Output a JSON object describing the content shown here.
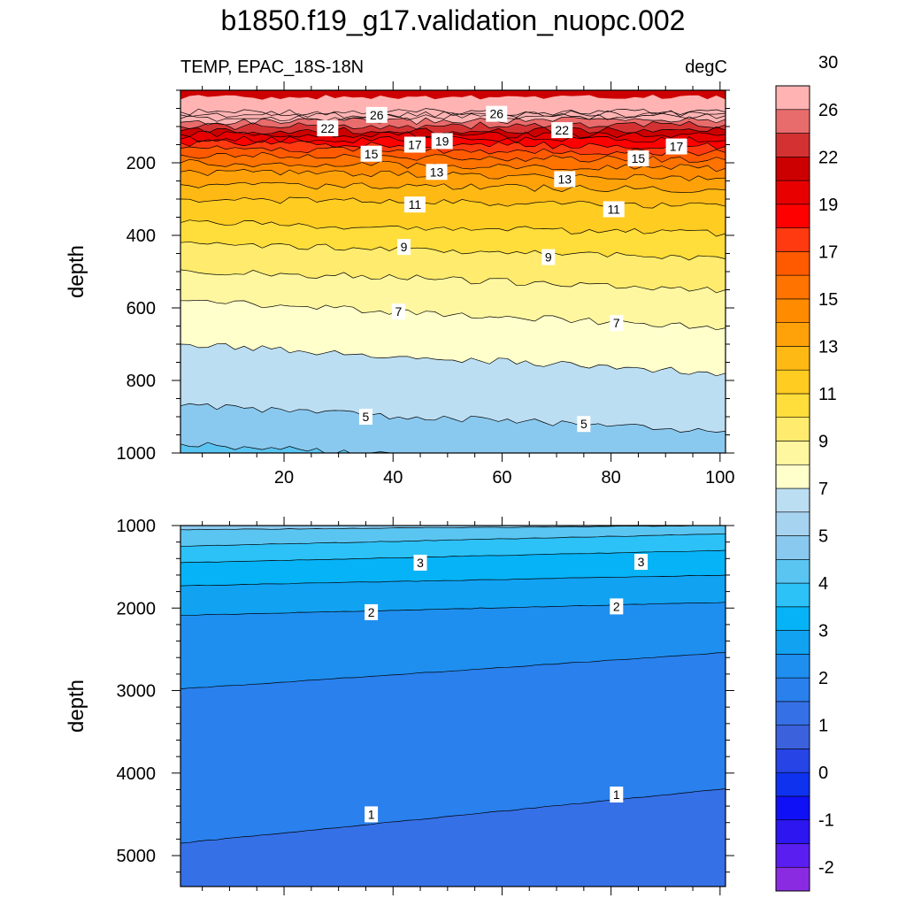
{
  "title": "b1850.f19_g17.validation_nuopc.002",
  "left_string": "TEMP, EPAC_18S-18N",
  "right_string": "degC",
  "colors": {
    "palette": [
      "#8a2be2",
      "#5a1ef0",
      "#2d16ef",
      "#1010f7",
      "#0e32ee",
      "#2744e6",
      "#3b62dc",
      "#3670e6",
      "#2a80ec",
      "#1e8fef",
      "#12a2f2",
      "#06b3f6",
      "#2cc2f8",
      "#5bc5f2",
      "#8ac9ef",
      "#a6d4f0",
      "#bcdef2",
      "#ffffcc",
      "#fff7a0",
      "#ffeb6e",
      "#ffdd3a",
      "#ffcc22",
      "#ffb915",
      "#ffa20a",
      "#ff8c00",
      "#ff7300",
      "#ff5a00",
      "#ff3a10",
      "#ff0000",
      "#e80000",
      "#cc0000",
      "#d43232",
      "#e86c6c",
      "#ffb3b3"
    ]
  },
  "chart_data": [
    {
      "type": "contour",
      "panel": "upper",
      "title": "",
      "xlabel": "",
      "ylabel": "depth",
      "xlim": [
        1,
        101
      ],
      "ylim": [
        1000,
        0
      ],
      "x_ticks": [
        20,
        40,
        60,
        80,
        100
      ],
      "x_tick_labels": [
        "20",
        "40",
        "60",
        "80",
        "100"
      ],
      "y_ticks": [
        200,
        400,
        600,
        800,
        1000
      ],
      "y_tick_labels": [
        "200",
        "400",
        "600",
        "800",
        "1000"
      ],
      "y_data_top": 0,
      "y_data_bottom": 1000,
      "contours": [
        {
          "level": 28.0,
          "depth_left": 60,
          "depth_right": 60
        },
        {
          "level": 27.0,
          "depth_left": 68,
          "depth_right": 64
        },
        {
          "level": 26.0,
          "depth_left": 78,
          "depth_right": 70
        },
        {
          "level": 24.0,
          "depth_left": 88,
          "depth_right": 80
        },
        {
          "level": 22.0,
          "depth_left": 100,
          "depth_right": 95
        },
        {
          "level": 20.0,
          "depth_left": 112,
          "depth_right": 110
        },
        {
          "level": 19.0,
          "depth_left": 122,
          "depth_right": 122
        },
        {
          "level": 18.0,
          "depth_left": 135,
          "depth_right": 138
        },
        {
          "level": 17.0,
          "depth_left": 145,
          "depth_right": 155
        },
        {
          "level": 16.0,
          "depth_left": 160,
          "depth_right": 172
        },
        {
          "level": 15.0,
          "depth_left": 178,
          "depth_right": 192
        },
        {
          "level": 14.0,
          "depth_left": 200,
          "depth_right": 215
        },
        {
          "level": 13.0,
          "depth_left": 225,
          "depth_right": 242
        },
        {
          "level": 12.0,
          "depth_left": 260,
          "depth_right": 275
        },
        {
          "level": 11.0,
          "depth_left": 300,
          "depth_right": 320
        },
        {
          "level": 10.0,
          "depth_left": 365,
          "depth_right": 395
        },
        {
          "level": 9.0,
          "depth_left": 420,
          "depth_right": 465
        },
        {
          "level": 8.0,
          "depth_left": 495,
          "depth_right": 550
        },
        {
          "level": 7.0,
          "depth_left": 580,
          "depth_right": 655
        },
        {
          "level": 6.0,
          "depth_left": 700,
          "depth_right": 780
        },
        {
          "level": 5.0,
          "depth_left": 870,
          "depth_right": 940
        },
        {
          "level": 4.0,
          "depth_left": 975,
          "depth_right": 1050
        }
      ],
      "contour_labels": [
        {
          "text": "26",
          "x": 37,
          "depth": 68
        },
        {
          "text": "26",
          "x": 59,
          "depth": 65
        },
        {
          "text": "22",
          "x": 28,
          "depth": 105
        },
        {
          "text": "22",
          "x": 71,
          "depth": 110
        },
        {
          "text": "17",
          "x": 44,
          "depth": 150
        },
        {
          "text": "19",
          "x": 49,
          "depth": 140
        },
        {
          "text": "17",
          "x": 92,
          "depth": 155
        },
        {
          "text": "15",
          "x": 36,
          "depth": 175
        },
        {
          "text": "15",
          "x": 85,
          "depth": 188
        },
        {
          "text": "13",
          "x": 48,
          "depth": 225
        },
        {
          "text": "13",
          "x": 71.5,
          "depth": 245
        },
        {
          "text": "11",
          "x": 44,
          "depth": 315
        },
        {
          "text": "11",
          "x": 80.5,
          "depth": 328
        },
        {
          "text": "9",
          "x": 42,
          "depth": 432
        },
        {
          "text": "9",
          "x": 68.5,
          "depth": 460
        },
        {
          "text": "7",
          "x": 41,
          "depth": 610
        },
        {
          "text": "7",
          "x": 81,
          "depth": 642
        },
        {
          "text": "5",
          "x": 35,
          "depth": 900
        },
        {
          "text": "5",
          "x": 75,
          "depth": 920
        }
      ]
    },
    {
      "type": "contour",
      "panel": "lower",
      "title": "",
      "xlabel": "",
      "ylabel": "depth",
      "xlim": [
        1,
        101
      ],
      "ylim": [
        5375,
        1000
      ],
      "x_ticks": [
        20,
        40,
        60,
        80,
        100
      ],
      "x_tick_labels": [
        "",
        "",
        "",
        "",
        ""
      ],
      "y_ticks": [
        1000,
        2000,
        3000,
        4000,
        5000
      ],
      "y_tick_labels": [
        "1000",
        "2000",
        "3000",
        "4000",
        "5000"
      ],
      "y_data_top": 1000,
      "y_data_bottom": 5375,
      "contours": [
        {
          "level": 4.0,
          "depth_left": 1050,
          "depth_right": 1000
        },
        {
          "level": 3.5,
          "depth_left": 1250,
          "depth_right": 1100
        },
        {
          "level": 3.0,
          "depth_left": 1450,
          "depth_right": 1300
        },
        {
          "level": 2.5,
          "depth_left": 1730,
          "depth_right": 1600
        },
        {
          "level": 2.0,
          "depth_left": 2090,
          "depth_right": 1930
        },
        {
          "level": 1.5,
          "depth_left": 2980,
          "depth_right": 2540
        },
        {
          "level": 1.0,
          "depth_left": 4850,
          "depth_right": 4190
        }
      ],
      "contour_labels": [
        {
          "text": "3",
          "x": 45,
          "depth": 1450
        },
        {
          "text": "3",
          "x": 85.5,
          "depth": 1440
        },
        {
          "text": "2",
          "x": 36,
          "depth": 2050
        },
        {
          "text": "2",
          "x": 81,
          "depth": 1980
        },
        {
          "text": "1",
          "x": 36,
          "depth": 4500
        },
        {
          "text": "1",
          "x": 81,
          "depth": 4260
        }
      ]
    }
  ],
  "colorbar": {
    "levels": [
      -2.5,
      -2,
      -1.5,
      -1,
      -0.5,
      0,
      0.5,
      1,
      1.5,
      2,
      2.5,
      3,
      3.5,
      4,
      4.5,
      5,
      6,
      7,
      8,
      9,
      10,
      11,
      12,
      13,
      14,
      15,
      16,
      17,
      18,
      19,
      20,
      22,
      24,
      26,
      28,
      30
    ],
    "labels": [
      "-2",
      "-1",
      "0",
      "1",
      "2",
      "3",
      "4",
      "5",
      "7",
      "9",
      "11",
      "13",
      "15",
      "17",
      "19",
      "22",
      "26",
      "30"
    ]
  }
}
